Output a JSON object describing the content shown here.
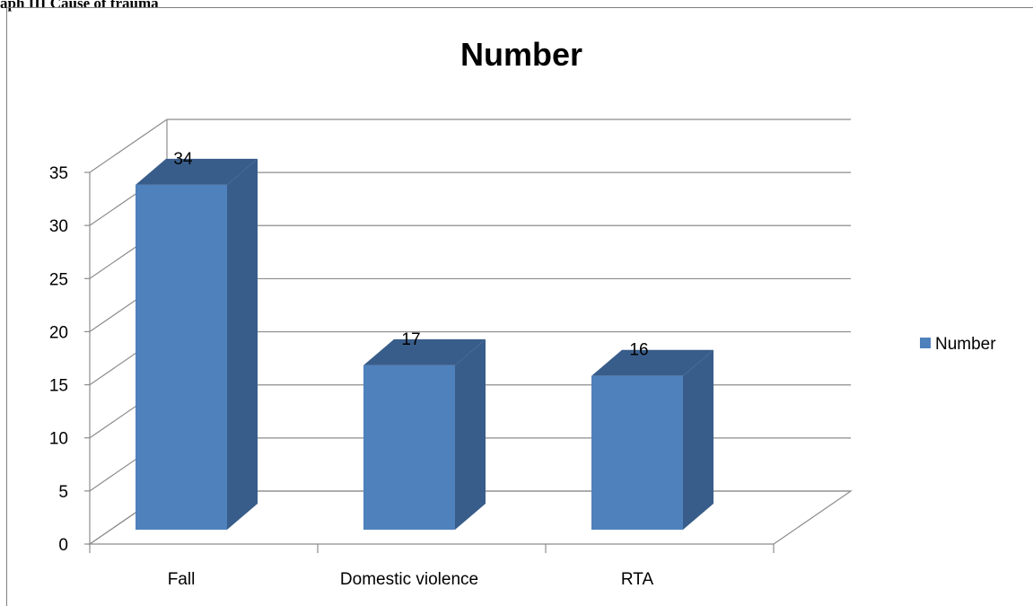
{
  "caption": "aph III Cause of trauma",
  "chart_data": {
    "type": "bar",
    "title": "Number",
    "categories": [
      "Fall",
      "Domestic violence",
      "RTA"
    ],
    "series": [
      {
        "name": "Number",
        "values": [
          34,
          17,
          16
        ],
        "color": "#4f81bd",
        "side_color": "#385d8a",
        "top_color": "#385d8a"
      }
    ],
    "data_labels": [
      "34",
      "17",
      "16"
    ],
    "ylim": [
      0,
      35
    ],
    "y_ticks": [
      0,
      5,
      10,
      15,
      20,
      25,
      30,
      35
    ],
    "y_tick_labels": [
      "0",
      "5",
      "10",
      "15",
      "20",
      "25",
      "30",
      "35"
    ],
    "grid": true,
    "legend_position": "right",
    "three_d": true
  }
}
